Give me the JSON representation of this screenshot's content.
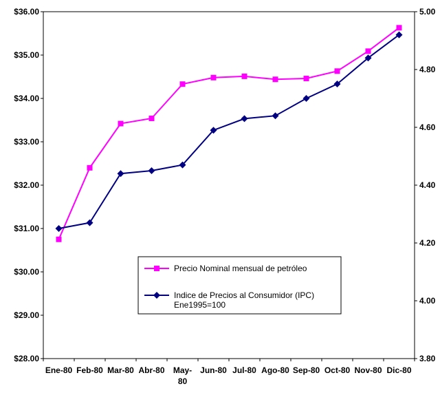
{
  "chart_data": {
    "type": "line",
    "categories": [
      "Ene-80",
      "Feb-80",
      "Mar-80",
      "Abr-80",
      "May-80",
      "Jun-80",
      "Jul-80",
      "Ago-80",
      "Sep-80",
      "Oct-80",
      "Nov-80",
      "Dic-80"
    ],
    "y_left": {
      "min": 28,
      "max": 36,
      "step": 1,
      "tick_labels": [
        "$28.00",
        "$29.00",
        "$30.00",
        "$31.00",
        "$32.00",
        "$33.00",
        "$34.00",
        "$35.00",
        "$36.00"
      ]
    },
    "y_right": {
      "min": 3.8,
      "max": 5.0,
      "step": 0.2,
      "tick_labels": [
        "3.80",
        "4.00",
        "4.20",
        "4.40",
        "4.60",
        "4.80",
        "5.00"
      ]
    },
    "series": [
      {
        "name": "Precio Nominal mensual de petróleo",
        "axis": "left",
        "color": "#ff00ff",
        "marker": "square",
        "values": [
          30.75,
          32.4,
          33.42,
          33.54,
          34.33,
          34.48,
          34.51,
          34.44,
          34.46,
          34.63,
          35.09,
          35.63
        ]
      },
      {
        "name": "Indice de Precios al Consumidor (IPC) Ene1995=100",
        "name_lines": [
          "Indice de Precios al Consumidor (IPC)",
          "Ene1995=100"
        ],
        "axis": "right",
        "color": "#000080",
        "marker": "diamond",
        "values": [
          4.25,
          4.27,
          4.44,
          4.45,
          4.47,
          4.59,
          4.63,
          4.64,
          4.7,
          4.75,
          4.84,
          4.92
        ]
      }
    ],
    "legend_position": "inside-bottom-center",
    "grid": false
  }
}
